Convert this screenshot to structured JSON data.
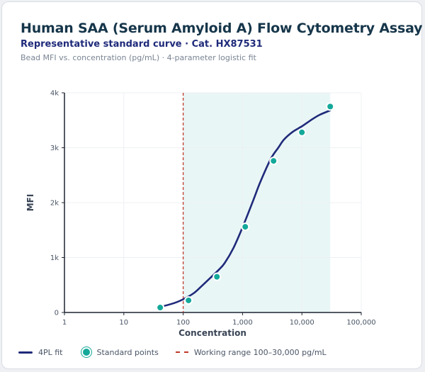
{
  "header": {
    "title": "Human SAA (Serum Amyloid A) Flow Cytometry Assay",
    "subtitle": "Representative standard curve · Cat. HX87531",
    "caption": "Bead MFI vs. concentration (pg/mL) · 4-parameter logistic fit"
  },
  "legend": {
    "fit_label": "4PL fit",
    "points_label": "Standard points",
    "range_label": "Working range 100–30,000 pg/mL"
  },
  "colors": {
    "fit_line": "#1f2a7a",
    "points": "#13a99a",
    "range_line": "#c0392b",
    "range_band": "#e9f6f6"
  },
  "chart_data": {
    "type": "scatter",
    "xlabel": "Concentration",
    "ylabel": "MFI",
    "x_scale": "log",
    "xlim": [
      1,
      100000
    ],
    "ylim": [
      0,
      4000
    ],
    "x_ticks": [
      1,
      10,
      100,
      1000,
      10000,
      100000
    ],
    "x_tick_labels": [
      "1",
      "10",
      "100",
      "1,000",
      "10,000",
      "100,000"
    ],
    "y_ticks": [
      0,
      1000,
      2000,
      3000,
      4000
    ],
    "y_tick_labels": [
      "0",
      "1k",
      "2k",
      "3k",
      "4k"
    ],
    "grid": true,
    "legend_position": "bottom-left",
    "working_range": [
      100,
      30000
    ],
    "series": [
      {
        "name": "Standard points",
        "kind": "points",
        "x": [
          41,
          123,
          370,
          1111,
          3333,
          10000,
          30000
        ],
        "y": [
          90,
          220,
          650,
          1560,
          2760,
          3280,
          3750
        ]
      },
      {
        "name": "4PL fit",
        "kind": "curve",
        "x": [
          41,
          70,
          100,
          150,
          200,
          300,
          400,
          500,
          700,
          1000,
          1500,
          2000,
          3000,
          4000,
          5000,
          7000,
          10000,
          15000,
          20000,
          30000
        ],
        "y": [
          100,
          170,
          240,
          350,
          470,
          650,
          780,
          900,
          1170,
          1550,
          2030,
          2380,
          2800,
          3000,
          3150,
          3290,
          3390,
          3520,
          3600,
          3680
        ]
      }
    ]
  }
}
